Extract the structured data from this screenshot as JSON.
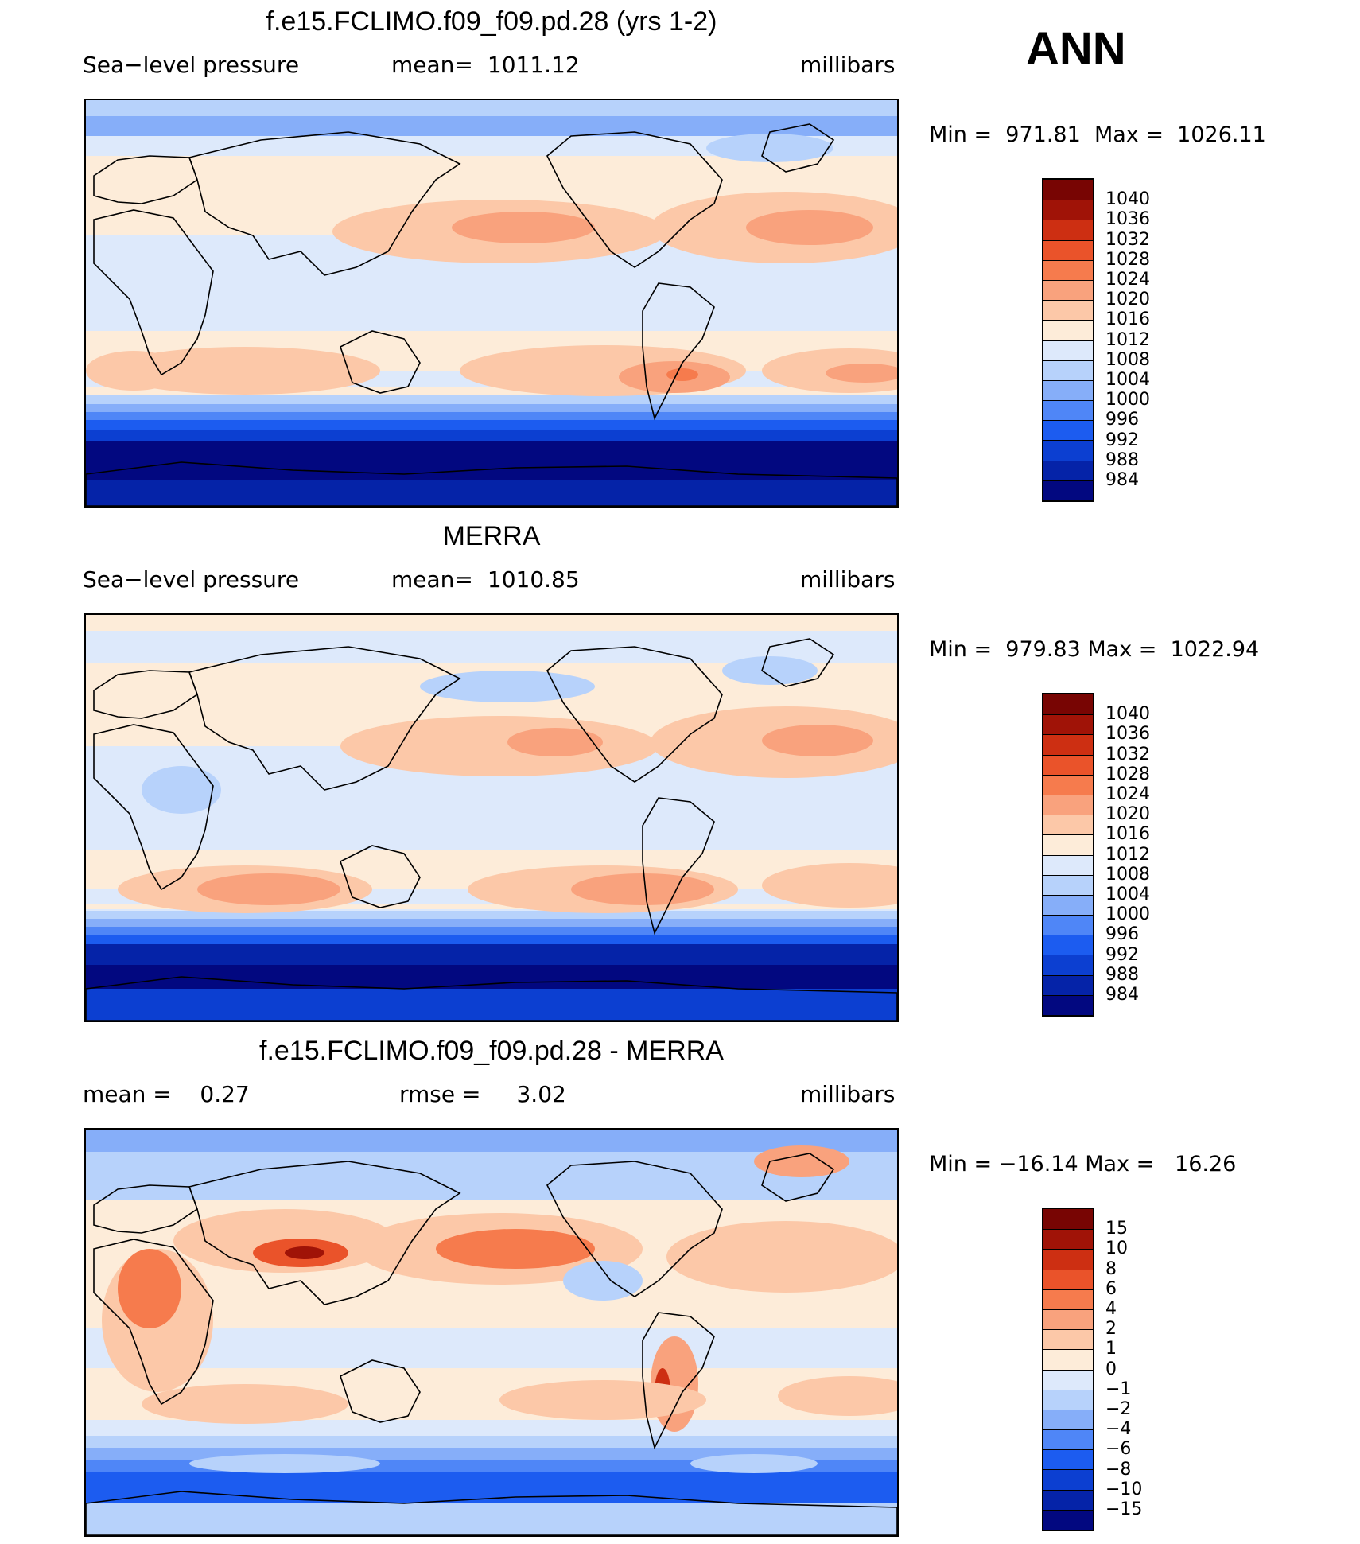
{
  "season": "ANN",
  "colors": {
    "abs": [
      "#020880",
      "#0523a8",
      "#0c3fd1",
      "#1c5cf0",
      "#4f86f7",
      "#86aef9",
      "#b7d2fb",
      "#dde9fb",
      "#fdecd9",
      "#fcc8a8",
      "#f9a27d",
      "#f67b4d",
      "#ea532a",
      "#cd2f12",
      "#a01307",
      "#780503"
    ],
    "diff": [
      "#020880",
      "#0523a8",
      "#0c3fd1",
      "#1c5cf0",
      "#4f86f7",
      "#86aef9",
      "#b7d2fb",
      "#dde9fb",
      "#fdecd9",
      "#fcc8a8",
      "#f9a27d",
      "#f67b4d",
      "#ea532a",
      "#cd2f12",
      "#a01307",
      "#780503"
    ]
  },
  "panels": [
    {
      "title": "f.e15.FCLIMO.f09_f09.pd.28 (yrs 1-2)",
      "variable": "Sea−level pressure",
      "stat_label": "mean=",
      "stat_value": "1011.12",
      "units": "millibars",
      "min_label": "Min",
      "min_value": "971.81",
      "max_label": "Max",
      "max_value": "1026.11",
      "field_kind": "model",
      "colorbar_labels": [
        "1040",
        "1036",
        "1032",
        "1028",
        "1024",
        "1020",
        "1016",
        "1012",
        "1008",
        "1004",
        "1000",
        "996",
        "992",
        "988",
        "984"
      ]
    },
    {
      "title": "MERRA",
      "variable": "Sea−level pressure",
      "stat_label": "mean=",
      "stat_value": "1010.85",
      "units": "millibars",
      "min_label": "Min",
      "min_value": "979.83",
      "max_label": "Max",
      "max_value": "1022.94",
      "field_kind": "obs",
      "colorbar_labels": [
        "1040",
        "1036",
        "1032",
        "1028",
        "1024",
        "1020",
        "1016",
        "1012",
        "1008",
        "1004",
        "1000",
        "996",
        "992",
        "988",
        "984"
      ]
    },
    {
      "title": "f.e15.FCLIMO.f09_f09.pd.28 - MERRA",
      "variable": "mean =",
      "variable_value": "0.27",
      "stat_label": "rmse =",
      "stat_value": "3.02",
      "units": "millibars",
      "min_label": "Min",
      "min_value": "−16.14",
      "max_label": "Max",
      "max_value": "16.26",
      "field_kind": "diff",
      "colorbar_labels": [
        "15",
        "10",
        "8",
        "6",
        "4",
        "2",
        "1",
        "0",
        "−1",
        "−2",
        "−4",
        "−6",
        "−8",
        "−10",
        "−15"
      ]
    }
  ]
}
